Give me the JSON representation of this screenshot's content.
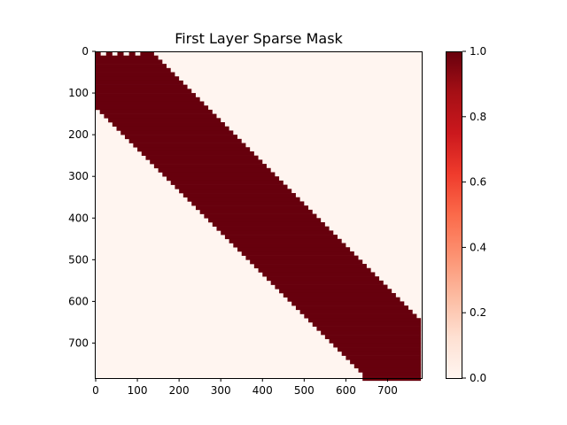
{
  "chart_data": {
    "type": "heatmap",
    "title": "First Layer Sparse Mask",
    "xlabel": "",
    "ylabel": "",
    "rows": 784,
    "cols": 784,
    "xlim": [
      0,
      784
    ],
    "ylim": [
      784,
      0
    ],
    "x_ticks": [
      0,
      100,
      200,
      300,
      400,
      500,
      600,
      700
    ],
    "y_ticks": [
      0,
      100,
      200,
      300,
      400,
      500,
      600,
      700
    ],
    "colormap": "Reds",
    "colormap_stops": [
      "#fff5f0",
      "#fee0d2",
      "#fcbba1",
      "#fc9272",
      "#fb6a4a",
      "#ef3b2c",
      "#cb181d",
      "#a50f15",
      "#67000d"
    ],
    "value_range": [
      0,
      1
    ],
    "colorbar_ticks": [
      0.0,
      0.2,
      0.4,
      0.6,
      0.8,
      1.0
    ],
    "colorbar_tick_labels": [
      "0.0",
      "0.2",
      "0.4",
      "0.6",
      "0.8",
      "1.0"
    ],
    "background_value": 0.0,
    "band": {
      "value": 1.0,
      "description_rows": "each row is 1.0 between start and end column",
      "row_step": 10,
      "points": [
        {
          "row": 0,
          "start": 0,
          "end": 130
        },
        {
          "row": 140,
          "start": 0,
          "end": 276
        },
        {
          "row": 200,
          "start": 60,
          "end": 336
        },
        {
          "row": 300,
          "start": 160,
          "end": 436
        },
        {
          "row": 400,
          "start": 260,
          "end": 536
        },
        {
          "row": 500,
          "start": 360,
          "end": 636
        },
        {
          "row": 600,
          "start": 460,
          "end": 736
        },
        {
          "row": 650,
          "start": 510,
          "end": 784
        },
        {
          "row": 700,
          "start": 560,
          "end": 784
        },
        {
          "row": 784,
          "start": 644,
          "end": 784
        }
      ],
      "top_notches": [
        {
          "start": 12,
          "end": 25,
          "depth": 10
        },
        {
          "start": 40,
          "end": 52,
          "depth": 10
        },
        {
          "start": 67,
          "end": 80,
          "depth": 10
        },
        {
          "start": 95,
          "end": 107,
          "depth": 10
        }
      ]
    }
  }
}
